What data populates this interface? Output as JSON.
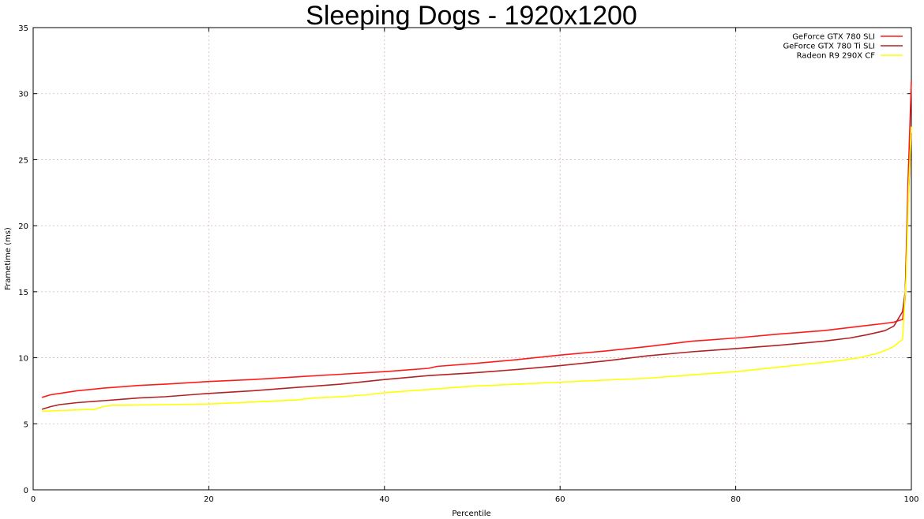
{
  "chart_data": {
    "type": "line",
    "title": "Sleeping Dogs - 1920x1200",
    "xlabel": "Percentile",
    "ylabel": "Frametime (ms)",
    "xlim": [
      0,
      100
    ],
    "ylim": [
      0,
      35
    ],
    "xticks": [
      0,
      20,
      40,
      60,
      80,
      100
    ],
    "yticks": [
      0,
      5,
      10,
      15,
      20,
      25,
      30,
      35
    ],
    "grid": true,
    "legend_position": "top-right",
    "series": [
      {
        "name": "GeForce GTX 780 SLI",
        "color": "#ff1a1a",
        "x": [
          1,
          2,
          3,
          5,
          8,
          10,
          12,
          15,
          20,
          25,
          30,
          35,
          40,
          45,
          46,
          50,
          55,
          60,
          65,
          70,
          75,
          80,
          85,
          90,
          95,
          97,
          98,
          99,
          99.3,
          99.6,
          100
        ],
        "y": [
          7.0,
          7.2,
          7.3,
          7.5,
          7.7,
          7.8,
          7.9,
          8.0,
          8.2,
          8.35,
          8.55,
          8.75,
          8.95,
          9.2,
          9.35,
          9.55,
          9.85,
          10.2,
          10.5,
          10.85,
          11.25,
          11.5,
          11.8,
          12.05,
          12.45,
          12.6,
          12.7,
          12.9,
          14.5,
          23.0,
          31.0
        ]
      },
      {
        "name": "GeForce GTX 780 Ti SLI",
        "color": "#b22222",
        "x": [
          1,
          2,
          3,
          5,
          8,
          10,
          12,
          15,
          20,
          25,
          30,
          35,
          40,
          45,
          50,
          55,
          60,
          65,
          70,
          75,
          80,
          85,
          90,
          93,
          95,
          97,
          98,
          99,
          99.3,
          99.6,
          100
        ],
        "y": [
          6.1,
          6.3,
          6.45,
          6.6,
          6.75,
          6.85,
          6.95,
          7.05,
          7.3,
          7.5,
          7.75,
          8.0,
          8.35,
          8.65,
          8.85,
          9.1,
          9.4,
          9.75,
          10.15,
          10.45,
          10.7,
          10.95,
          11.25,
          11.5,
          11.75,
          12.05,
          12.4,
          13.5,
          15.0,
          21.5,
          27.0
        ]
      },
      {
        "name": "Radeon R9 290X CF",
        "color": "#ffff00",
        "x": [
          1,
          3,
          5,
          7,
          8,
          9,
          10,
          15,
          20,
          25,
          30,
          32,
          35,
          38,
          40,
          45,
          50,
          55,
          60,
          65,
          70,
          75,
          80,
          85,
          90,
          92,
          94,
          96,
          97,
          98,
          99,
          99.4,
          99.7,
          100
        ],
        "y": [
          5.95,
          6.0,
          6.05,
          6.1,
          6.3,
          6.4,
          6.4,
          6.45,
          6.5,
          6.65,
          6.8,
          6.95,
          7.05,
          7.2,
          7.35,
          7.6,
          7.85,
          8.0,
          8.15,
          8.3,
          8.45,
          8.7,
          8.95,
          9.3,
          9.65,
          9.8,
          10.0,
          10.3,
          10.55,
          10.85,
          11.4,
          16.0,
          23.0,
          27.5
        ]
      }
    ]
  }
}
